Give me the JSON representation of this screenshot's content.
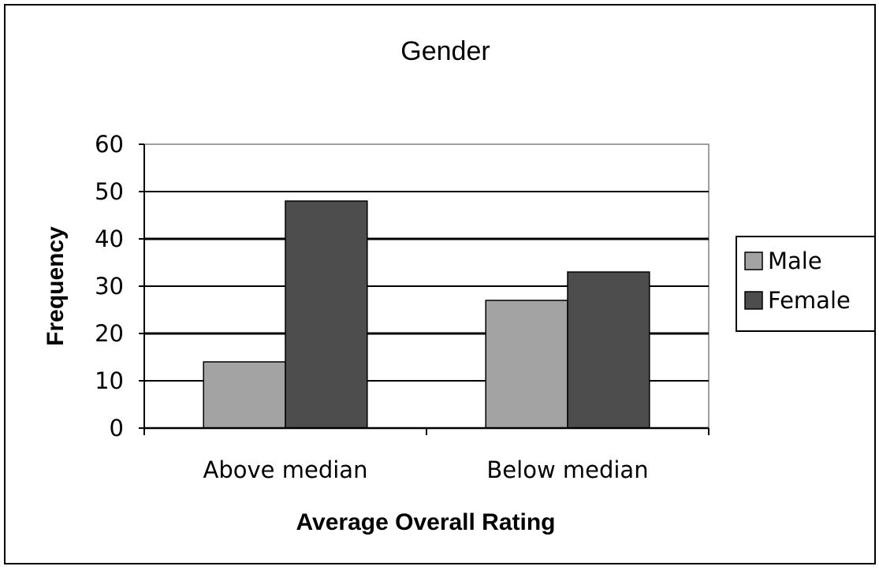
{
  "chart_data": {
    "type": "bar",
    "title": "Gender",
    "xlabel": "Average Overall Rating",
    "ylabel": "Frequency",
    "categories": [
      "Above median",
      "Below median"
    ],
    "series": [
      {
        "name": "Male",
        "values": [
          14,
          27
        ],
        "color": "#a3a3a3"
      },
      {
        "name": "Female",
        "values": [
          48,
          33
        ],
        "color": "#4d4d4d"
      }
    ],
    "ylim": [
      0,
      60
    ],
    "yticks": [
      0,
      10,
      20,
      30,
      40,
      50,
      60
    ],
    "grid": true,
    "legend_position": "right"
  }
}
